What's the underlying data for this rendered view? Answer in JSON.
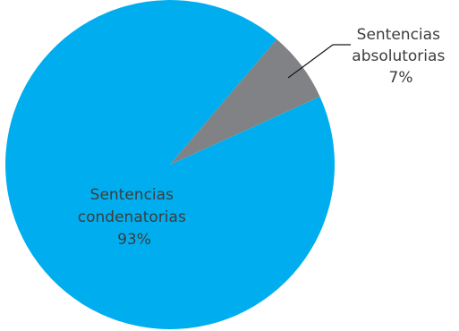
{
  "chart_data": {
    "type": "pie",
    "title": "",
    "slices": [
      {
        "label_lines": [
          "Sentencias",
          "condenatorias",
          "93%"
        ],
        "category": "Sentencias condenatorias",
        "value": 93,
        "color": "#00AEEF"
      },
      {
        "label_lines": [
          "Sentencias",
          "absolutorias",
          "7%"
        ],
        "category": "Sentencias absolutorias",
        "value": 7,
        "color": "#808285"
      }
    ]
  }
}
